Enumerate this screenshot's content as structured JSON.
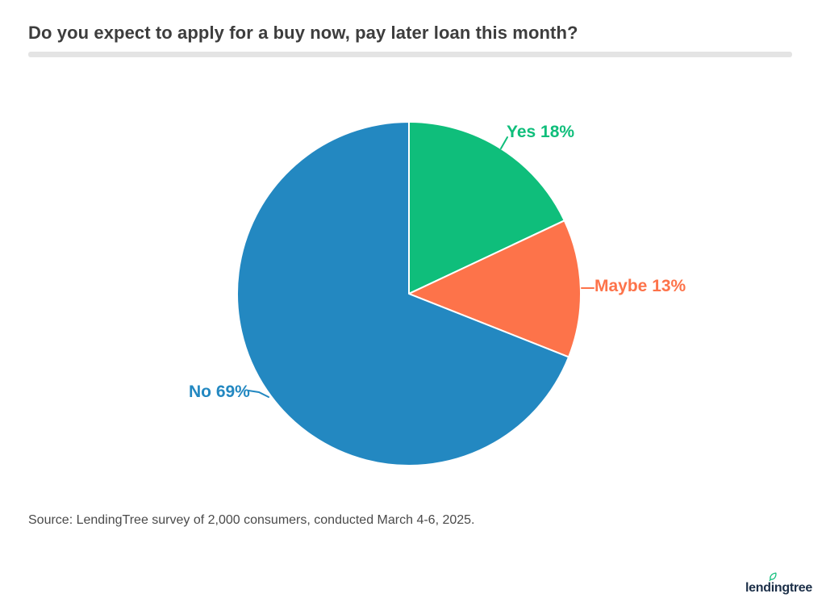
{
  "header": {
    "title": "Do you expect to apply for a buy now, pay later loan this month?"
  },
  "chart_data": {
    "type": "pie",
    "title": "Do you expect to apply for a buy now, pay later loan this month?",
    "units": "%",
    "start_angle_deg": 0,
    "direction": "clockwise",
    "legend_position": "labels-outside-with-leader-lines",
    "slices": [
      {
        "name": "Yes",
        "value": 18,
        "label": "Yes 18%",
        "color": "#0fbe7b"
      },
      {
        "name": "Maybe",
        "value": 13,
        "label": "Maybe 13%",
        "color": "#fd734a"
      },
      {
        "name": "No",
        "value": 69,
        "label": "No 69%",
        "color": "#2388c1"
      }
    ],
    "slice_border_color": "#ffffff"
  },
  "footer": {
    "source": "Source: LendingTree survey of 2,000 consumers, conducted March 4-6, 2025."
  },
  "branding": {
    "logo_text": "lendingtree",
    "logo_pre": "lend",
    "logo_i": "i",
    "logo_post": "ngtree",
    "logo_color": "#1d3049",
    "leaf_color": "#0fbe7b"
  }
}
